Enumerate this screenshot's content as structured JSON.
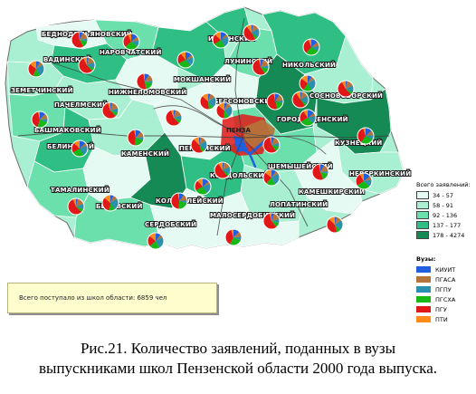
{
  "caption": {
    "line1": "Рис.21. Количество заявлений, поданных в вузы",
    "line2": "выпускниками школ Пензенской области 2000 года выпуска."
  },
  "total_box": {
    "text": "Всего поступало из школ области: 6859 чел"
  },
  "legend_total": {
    "title": "Всего заявлений:",
    "items": [
      {
        "label": "34 - 57",
        "color": "#e4faf2"
      },
      {
        "label": "58 - 91",
        "color": "#a9efd1"
      },
      {
        "label": "92 - 136",
        "color": "#6be0ad"
      },
      {
        "label": "137 - 177",
        "color": "#2fbf84"
      },
      {
        "label": "178 - 4274",
        "color": "#168a55"
      }
    ]
  },
  "legend_vuz": {
    "title": "Вузы:",
    "items": [
      {
        "label": "КИУИТ",
        "color": "#1f5fe0"
      },
      {
        "label": "ПГАСА",
        "color": "#b5743a"
      },
      {
        "label": "ПГПУ",
        "color": "#2b8fb0"
      },
      {
        "label": "ПГСХА",
        "color": "#18b818"
      },
      {
        "label": "ПГУ",
        "color": "#e01818"
      },
      {
        "label": "ПТИ",
        "color": "#ff8a1a"
      }
    ]
  },
  "districts": [
    "БЕДНОДЕМЬЯНОВСКИЙ",
    "НАРОВЧАТСКИЙ",
    "ВАДИНСКИЙ",
    "ЗЕМЕТЧИНСКИЙ",
    "НИЖНЕЛОМОВСКИЙ",
    "МОКШАНСКИЙ",
    "ПАЧЕЛМСКИЙ",
    "БАШМАКОВСКИЙ",
    "ИССИНСКИЙ",
    "ЛУНИНСКИЙ",
    "НИКОЛЬСКИЙ",
    "БЕССОНОВСКИЙ",
    "СОСНОВОБОРСКИЙ",
    "ГОРОДИЩЕНСКИЙ",
    "БЕЛИНСКИЙ",
    "КАМЕНСКИЙ",
    "ПЕНЗЕНСКИЙ",
    "КУЗНЕЦКИЙ",
    "ШЕМЫШЕЙСКИЙ",
    "КОНДОЛЬСКИЙ",
    "НЕВЕРКИНСКИЙ",
    "ТАМАЛИНСКИЙ",
    "БЕКОВСКИЙ",
    "КОЛЫШЛЕЙСКИЙ",
    "КАМЕШКИРСКИЙ",
    "ЛОПАТИНСКИЙ",
    "СЕРДОБСКИЙ",
    "МАЛОСЕРДОБИНСКИЙ"
  ],
  "cities": [
    "ПЕНЗА"
  ],
  "pie_colors": [
    "#1f5fe0",
    "#b5743a",
    "#2b8fb0",
    "#18b818",
    "#e01818",
    "#ff8a1a"
  ]
}
